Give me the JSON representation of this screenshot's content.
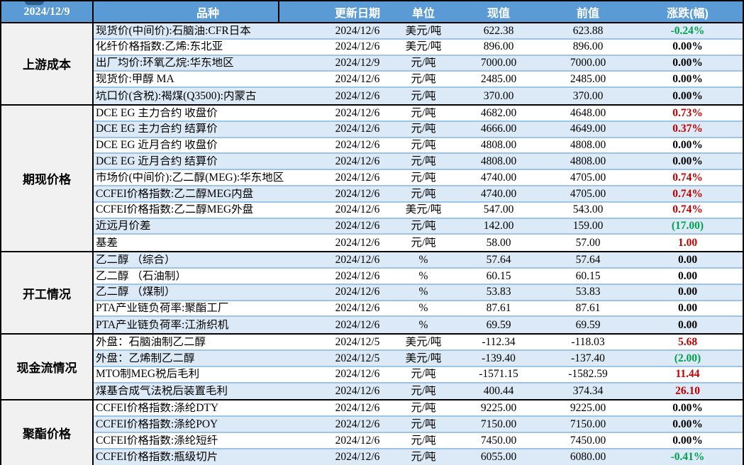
{
  "colors": {
    "header_bg": "#5B9BD5",
    "stripe_blue": "#DCE9F6",
    "row_separator": "#9DC3E6",
    "section_label_bg": "#F1F1F1",
    "up_red": "#C00000",
    "down_green": "#00A050",
    "border_black": "#000000"
  },
  "chart_data": {
    "type": "table",
    "report_date": "2024/12/9",
    "columns": [
      "品种",
      "更新日期",
      "单位",
      "现值",
      "前值",
      "涨跌(幅)"
    ],
    "sections": [
      {
        "label": "上游成本",
        "stripe_start": "blue",
        "rows": [
          {
            "product": "现货价(中间价):石脑油:CFR日本",
            "date": "2024/12/6",
            "unit": "美元/吨",
            "current": "622.38",
            "previous": "623.88",
            "change": "-0.24%",
            "trend": "down"
          },
          {
            "product": "化纤价格指数:乙烯:东北亚",
            "date": "2024/12/6",
            "unit": "美元/吨",
            "current": "896.00",
            "previous": "896.00",
            "change": "0.00%",
            "trend": "flat"
          },
          {
            "product": "出厂均价:环氧乙烷:华东地区",
            "date": "2024/12/9",
            "unit": "元/吨",
            "current": "7000.00",
            "previous": "7000.00",
            "change": "0.00%",
            "trend": "flat"
          },
          {
            "product": "现货价:甲醇 MA",
            "date": "2024/12/6",
            "unit": "元/吨",
            "current": "2485.00",
            "previous": "2485.00",
            "change": "0.00%",
            "trend": "flat"
          },
          {
            "product": "坑口价(含税):褐煤(Q3500):内蒙古",
            "date": "2024/12/6",
            "unit": "元/吨",
            "current": "370.00",
            "previous": "370.00",
            "change": "0.00%",
            "trend": "flat"
          }
        ]
      },
      {
        "label": "期现价格",
        "stripe_start": "white",
        "rows": [
          {
            "product": "DCE EG 主力合约 收盘价",
            "date": "2024/12/6",
            "unit": "元/吨",
            "current": "4682.00",
            "previous": "4648.00",
            "change": "0.73%",
            "trend": "up"
          },
          {
            "product": "DCE EG 主力合约 结算价",
            "date": "2024/12/6",
            "unit": "元/吨",
            "current": "4666.00",
            "previous": "4649.00",
            "change": "0.37%",
            "trend": "up"
          },
          {
            "product": "DCE EG 近月合约 收盘价",
            "date": "2024/12/6",
            "unit": "元/吨",
            "current": "4808.00",
            "previous": "4808.00",
            "change": "0.00%",
            "trend": "flat"
          },
          {
            "product": "DCE EG 近月合约 结算价",
            "date": "2024/12/6",
            "unit": "元/吨",
            "current": "4808.00",
            "previous": "4808.00",
            "change": "0.00%",
            "trend": "flat"
          },
          {
            "product": "市场价(中间价):乙二醇(MEG):华东地区",
            "date": "2024/12/6",
            "unit": "元/吨",
            "current": "4740.00",
            "previous": "4705.00",
            "change": "0.74%",
            "trend": "up"
          },
          {
            "product": "CCFEI价格指数:乙二醇MEG内盘",
            "date": "2024/12/6",
            "unit": "元/吨",
            "current": "4740.00",
            "previous": "4705.00",
            "change": "0.74%",
            "trend": "up"
          },
          {
            "product": "CCFEI价格指数:乙二醇MEG外盘",
            "date": "2024/12/6",
            "unit": "美元/吨",
            "current": "547.00",
            "previous": "543.00",
            "change": "0.74%",
            "trend": "up"
          },
          {
            "product": "近远月价差",
            "date": "2024/12/6",
            "unit": "元/吨",
            "current": "142.00",
            "previous": "159.00",
            "change": "(17.00)",
            "trend": "down"
          },
          {
            "product": "基差",
            "date": "2024/12/6",
            "unit": "元/吨",
            "current": "58.00",
            "previous": "57.00",
            "change": "1.00",
            "trend": "up"
          }
        ]
      },
      {
        "label": "开工情况",
        "stripe_start": "blue",
        "rows": [
          {
            "product": "乙二醇 （综合）",
            "date": "2024/12/6",
            "unit": "%",
            "current": "57.64",
            "previous": "57.64",
            "change": "0.00",
            "trend": "flat"
          },
          {
            "product": "乙二醇 （石油制）",
            "date": "2024/12/6",
            "unit": "%",
            "current": "60.15",
            "previous": "60.15",
            "change": "0.00",
            "trend": "flat"
          },
          {
            "product": "乙二醇 （煤制）",
            "date": "2024/12/6",
            "unit": "%",
            "current": "53.83",
            "previous": "53.83",
            "change": "0.00",
            "trend": "flat"
          },
          {
            "product": "PTA产业链负荷率:聚酯工厂",
            "date": "2024/12/6",
            "unit": "%",
            "current": "87.61",
            "previous": "87.61",
            "change": "0.00",
            "trend": "flat"
          },
          {
            "product": "PTA产业链负荷率:江浙织机",
            "date": "2024/12/6",
            "unit": "%",
            "current": "69.59",
            "previous": "69.59",
            "change": "0.00",
            "trend": "flat"
          }
        ]
      },
      {
        "label": "现金流情况",
        "stripe_start": "white",
        "rows": [
          {
            "product": "外盘：石脑油制乙二醇",
            "date": "2024/12/5",
            "unit": "美元/吨",
            "current": "-112.34",
            "previous": "-118.03",
            "change": "5.68",
            "trend": "up"
          },
          {
            "product": "外盘：乙烯制乙二醇",
            "date": "2024/12/5",
            "unit": "美元/吨",
            "current": "-139.40",
            "previous": "-137.40",
            "change": "(2.00)",
            "trend": "down"
          },
          {
            "product": "MTO制MEG税后毛利",
            "date": "2024/12/6",
            "unit": "元/吨",
            "current": "-1571.15",
            "previous": "-1582.59",
            "change": "11.44",
            "trend": "up"
          },
          {
            "product": "煤基合成气法税后装置毛利",
            "date": "2024/12/6",
            "unit": "元/吨",
            "current": "400.44",
            "previous": "374.34",
            "change": "26.10",
            "trend": "up"
          }
        ]
      },
      {
        "label": "聚酯价格",
        "stripe_start": "white",
        "rows": [
          {
            "product": "CCFEI价格指数:涤纶DTY",
            "date": "2024/12/6",
            "unit": "元/吨",
            "current": "9225.00",
            "previous": "9225.00",
            "change": "0.00%",
            "trend": "flat"
          },
          {
            "product": "CCFEI价格指数:涤纶POY",
            "date": "2024/12/6",
            "unit": "元/吨",
            "current": "7150.00",
            "previous": "7150.00",
            "change": "0.00%",
            "trend": "flat"
          },
          {
            "product": "CCFEI价格指数:涤纶短纤",
            "date": "2024/12/6",
            "unit": "元/吨",
            "current": "7450.00",
            "previous": "7450.00",
            "change": "0.00%",
            "trend": "flat"
          },
          {
            "product": "CCFEI价格指数:瓶级切片",
            "date": "2024/12/6",
            "unit": "元/吨",
            "current": "6055.00",
            "previous": "6080.00",
            "change": "-0.41%",
            "trend": "down"
          }
        ]
      }
    ]
  }
}
